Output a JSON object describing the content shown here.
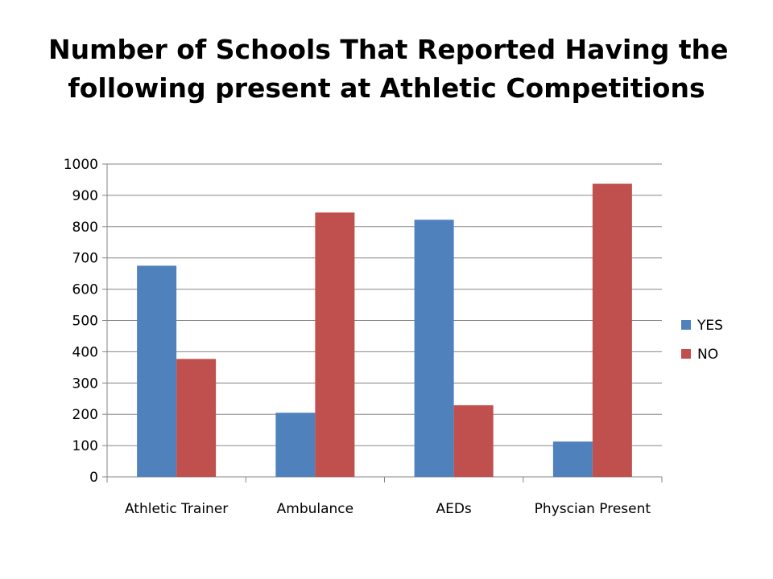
{
  "slide": {
    "title_lines": [
      "Number of Schools That Reported Having the",
      "following present at Athletic Competitions"
    ]
  },
  "chart_data": {
    "type": "bar",
    "title": "Number of Schools That Reported Having the following present at Athletic Competitions",
    "categories": [
      "Athletic Trainer",
      "Ambulance",
      "AEDs",
      "Physcian Present"
    ],
    "series": [
      {
        "name": "YES",
        "values": [
          675,
          205,
          822,
          113
        ],
        "color": "#4F81BD"
      },
      {
        "name": "NO",
        "values": [
          377,
          845,
          229,
          937
        ],
        "color": "#C0504D"
      }
    ],
    "ylim": [
      0,
      1000
    ],
    "yticks": [
      0,
      100,
      200,
      300,
      400,
      500,
      600,
      700,
      800,
      900,
      1000
    ],
    "xlabel": "",
    "ylabel": "",
    "grid": true,
    "legend_position": "right"
  }
}
